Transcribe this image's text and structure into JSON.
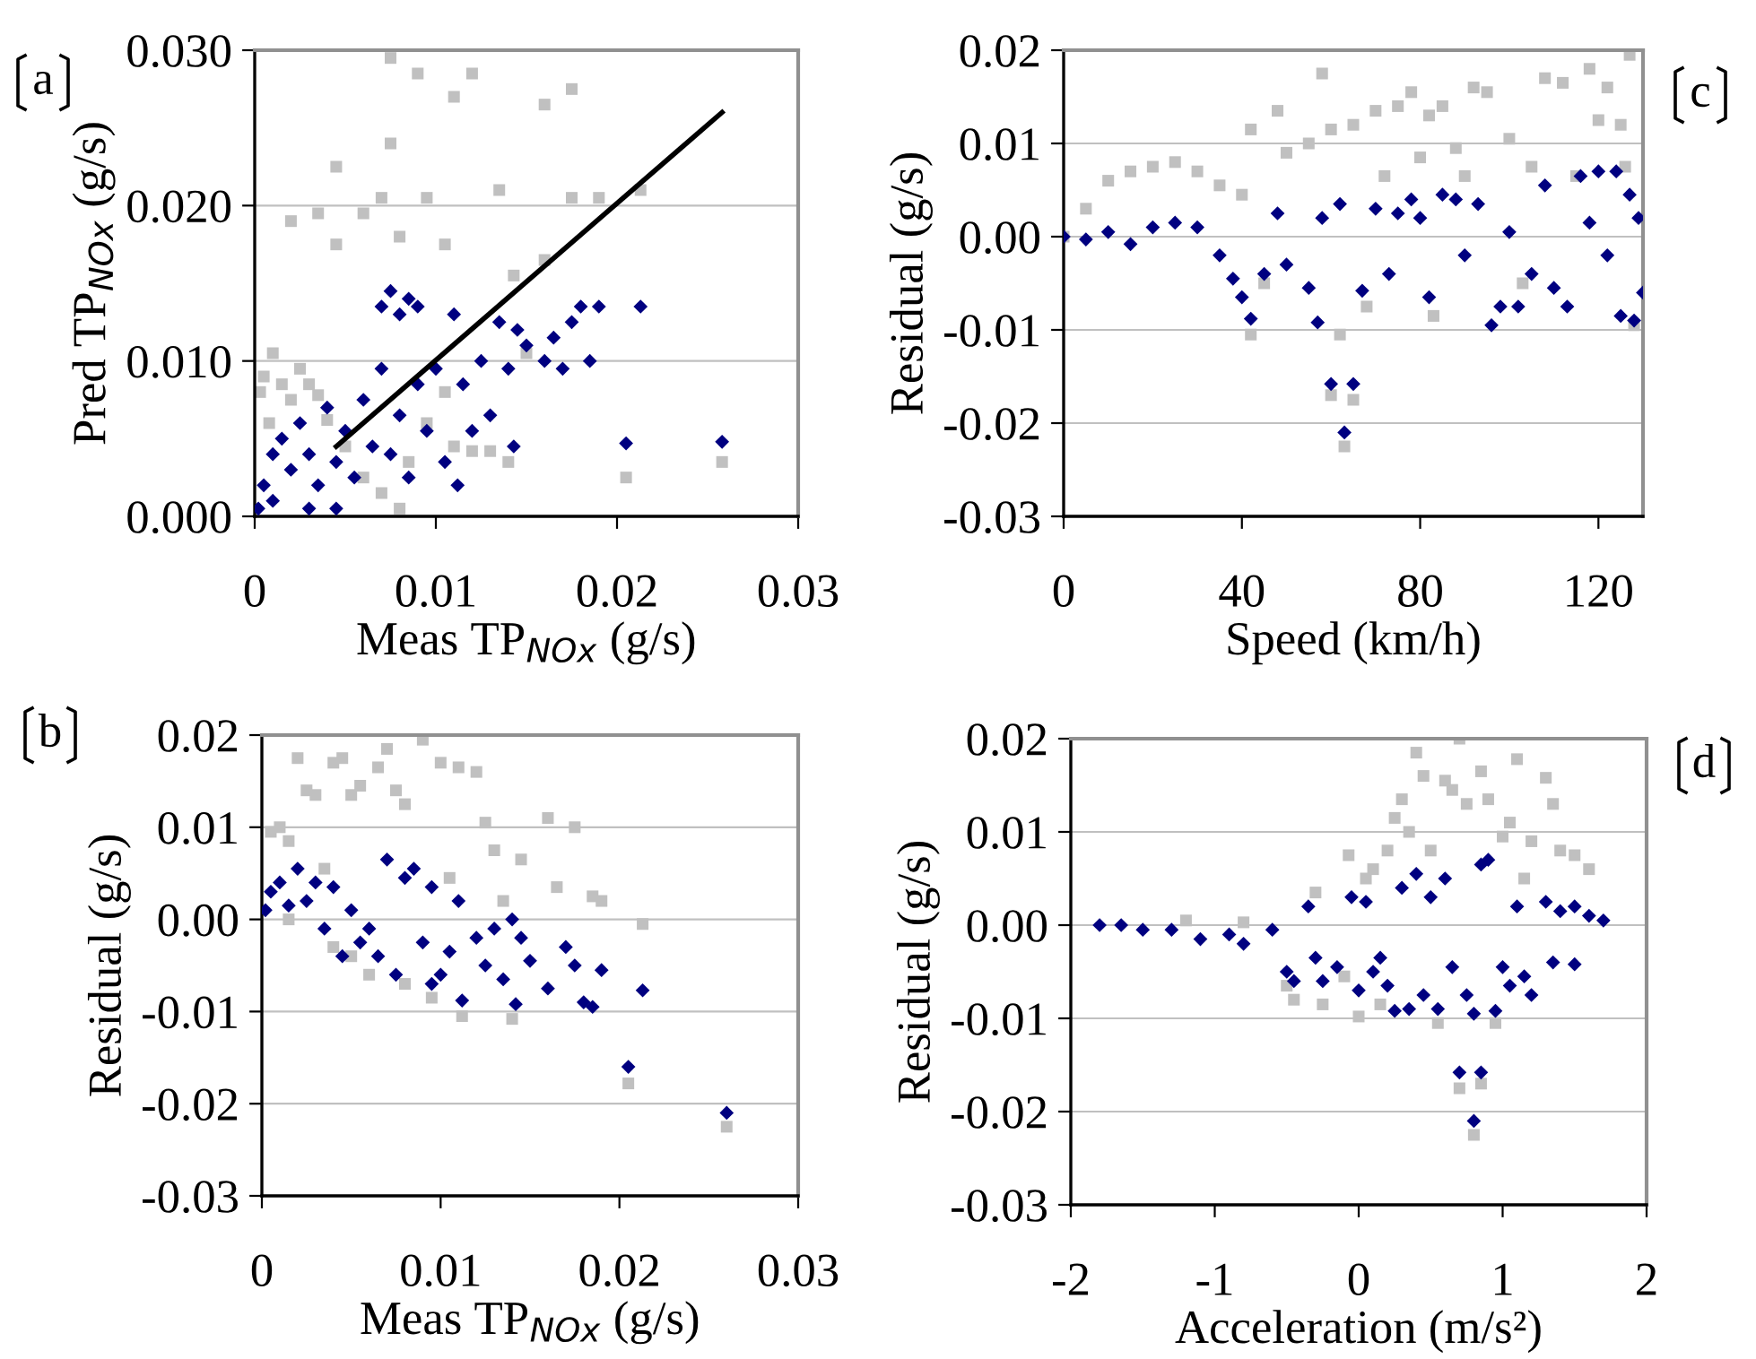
{
  "chart_data": [
    {
      "type": "scatter",
      "annotations": [
        "a"
      ],
      "xlabel": "Meas TP$_{NOx}$ (g/s)",
      "ylabel": "Pred TP$_{NOx}$ (g/s)",
      "xlim": [
        0,
        0.03
      ],
      "ylim": [
        0,
        0.03
      ],
      "xticks": [
        0,
        0.01,
        0.02,
        0.03
      ],
      "yticks": [
        {
          "value": 0,
          "label": "0.000"
        },
        {
          "value": 0.01,
          "label": "0.010"
        },
        {
          "value": 0.02,
          "label": "0.020"
        },
        {
          "value": 0.03,
          "label": "0.030"
        }
      ],
      "grid": "y",
      "series": [
        {
          "color": "#c0c0c0",
          "marker": "square",
          "x": [
            0.0005,
            0.001,
            0.0015,
            0.002,
            0.0008,
            0.0003,
            0.0025,
            0.003,
            0.0035,
            0.004,
            0.005,
            0.006,
            0.007,
            0.008,
            0.0085,
            0.0095,
            0.0105,
            0.011,
            0.012,
            0.013,
            0.014,
            0.015,
            0.016,
            0.0175,
            0.019,
            0.0213,
            0.0205,
            0.0258,
            0.0075,
            0.009,
            0.0095,
            0.011,
            0.012,
            0.0075,
            0.0045,
            0.0035,
            0.002,
            0.007,
            0.008,
            0.0105,
            0.0135,
            0.0175,
            0.016,
            0.0143,
            0.006,
            0.0045
          ],
          "values": [
            0.009,
            0.0105,
            0.0085,
            0.0075,
            0.006,
            0.008,
            0.0095,
            0.0085,
            0.0078,
            0.0062,
            0.0045,
            0.0025,
            0.0015,
            0.0005,
            0.0035,
            0.006,
            0.008,
            0.0045,
            0.0042,
            0.0042,
            0.0035,
            0.0105,
            0.0165,
            0.0205,
            0.0205,
            0.021,
            0.0025,
            0.0035,
            0.0295,
            0.0285,
            0.0205,
            0.027,
            0.0285,
            0.024,
            0.0225,
            0.0195,
            0.019,
            0.0205,
            0.018,
            0.0175,
            0.021,
            0.0275,
            0.0265,
            0.0155,
            0.0195,
            0.0175
          ]
        },
        {
          "color": "#000080",
          "marker": "diamond",
          "x": [
            0.0002,
            0.0005,
            0.001,
            0.0015,
            0.002,
            0.0025,
            0.003,
            0.0035,
            0.004,
            0.0045,
            0.005,
            0.0055,
            0.006,
            0.0065,
            0.007,
            0.007,
            0.0075,
            0.008,
            0.0085,
            0.009,
            0.0075,
            0.008,
            0.0085,
            0.009,
            0.0095,
            0.01,
            0.0105,
            0.011,
            0.0112,
            0.0115,
            0.012,
            0.0125,
            0.013,
            0.0135,
            0.014,
            0.0143,
            0.0145,
            0.015,
            0.016,
            0.0165,
            0.017,
            0.0175,
            0.018,
            0.0185,
            0.019,
            0.0213,
            0.0205,
            0.0258,
            0.001,
            0.003,
            0.0045
          ],
          "values": [
            0.0005,
            0.002,
            0.004,
            0.005,
            0.003,
            0.006,
            0.004,
            0.002,
            0.007,
            0.0035,
            0.0055,
            0.0025,
            0.0075,
            0.0045,
            0.0095,
            0.0135,
            0.0145,
            0.013,
            0.014,
            0.0135,
            0.004,
            0.0065,
            0.0025,
            0.0085,
            0.0055,
            0.0095,
            0.0035,
            0.013,
            0.002,
            0.0085,
            0.0055,
            0.01,
            0.0065,
            0.0125,
            0.0095,
            0.0045,
            0.012,
            0.011,
            0.01,
            0.0115,
            0.0095,
            0.0125,
            0.0135,
            0.01,
            0.0135,
            0.0135,
            0.0047,
            0.0048,
            0.001,
            0.0005,
            0.0005
          ]
        },
        {
          "type": "line",
          "color": "#000000",
          "marker": "none",
          "x": [
            0.0045,
            0.0258
          ],
          "values": [
            0.0045,
            0.026
          ]
        }
      ]
    },
    {
      "type": "scatter",
      "annotations": [
        "c"
      ],
      "xlabel": "Speed (km/h)",
      "ylabel": "Residual (g/s)",
      "xlim": [
        0,
        130
      ],
      "ylim": [
        -0.03,
        0.02
      ],
      "xticks": [
        0,
        40,
        80,
        120
      ],
      "yticks": [
        -0.03,
        -0.02,
        -0.01,
        {
          "value": 0,
          "label": "0.00"
        },
        0.01,
        0.02
      ],
      "grid": "y",
      "series": [
        {
          "color": "#c0c0c0",
          "marker": "square",
          "x": [
            0,
            5,
            10,
            15,
            20,
            25,
            30,
            35,
            40,
            42,
            45,
            48,
            50,
            55,
            58,
            60,
            62,
            60,
            65,
            63,
            65,
            70,
            72,
            75,
            78,
            80,
            82,
            85,
            88,
            90,
            92,
            95,
            100,
            103,
            105,
            108,
            112,
            115,
            118,
            120,
            122,
            125,
            127,
            128,
            126,
            68,
            83,
            42
          ],
          "values": [
            0,
            0.003,
            0.006,
            0.007,
            0.0075,
            0.008,
            0.007,
            0.0055,
            0.0045,
            0.0115,
            -0.005,
            0.0135,
            0.009,
            0.01,
            0.0175,
            0.0115,
            -0.0105,
            -0.017,
            -0.0175,
            -0.0225,
            0.012,
            0.0135,
            0.0065,
            0.014,
            0.0155,
            0.0085,
            0.013,
            0.014,
            0.0095,
            0.0065,
            0.016,
            0.0155,
            0.0105,
            -0.005,
            0.0075,
            0.017,
            0.0165,
            0.0065,
            0.018,
            0.0125,
            0.016,
            0.012,
            0.0195,
            -0.0095,
            0.0075,
            -0.0075,
            -0.0085,
            -0.0105
          ]
        },
        {
          "color": "#000080",
          "marker": "diamond",
          "x": [
            0,
            5,
            10,
            15,
            20,
            25,
            30,
            35,
            38,
            40,
            42,
            45,
            48,
            50,
            55,
            57,
            58,
            60,
            63,
            65,
            62,
            67,
            70,
            73,
            75,
            78,
            80,
            82,
            85,
            88,
            90,
            93,
            96,
            98,
            100,
            102,
            105,
            108,
            110,
            113,
            116,
            118,
            120,
            122,
            124,
            125,
            127,
            128,
            129,
            130
          ],
          "values": [
            0,
            -0.0003,
            0.0005,
            -0.0008,
            0.001,
            0.0015,
            0.001,
            -0.002,
            -0.0045,
            -0.0065,
            -0.0088,
            -0.004,
            0.0025,
            -0.003,
            -0.0055,
            -0.0092,
            0.002,
            -0.0158,
            -0.021,
            -0.0158,
            0.0035,
            -0.0058,
            0.003,
            -0.004,
            0.0025,
            0.004,
            0.002,
            -0.0065,
            0.0045,
            0.004,
            -0.002,
            0.0035,
            -0.0095,
            -0.0075,
            0.0005,
            -0.0075,
            -0.004,
            0.0055,
            -0.0055,
            -0.0075,
            0.0065,
            0.0015,
            0.007,
            -0.002,
            0.007,
            -0.0085,
            0.0045,
            -0.009,
            0.002,
            -0.006
          ]
        }
      ]
    },
    {
      "type": "scatter",
      "annotations": [
        "b"
      ],
      "xlabel": "Meas TP$_{NOx}$ (g/s)",
      "ylabel": "Residual (g/s)",
      "xlim": [
        0,
        0.03
      ],
      "ylim": [
        -0.03,
        0.02
      ],
      "xticks": [
        0,
        0.01,
        0.02,
        0.03
      ],
      "yticks": [
        -0.03,
        -0.02,
        -0.01,
        {
          "value": 0,
          "label": "0.00"
        },
        0.01,
        0.02
      ],
      "grid": "y",
      "series": [
        {
          "color": "#c0c0c0",
          "marker": "square",
          "x": [
            0.0005,
            0.001,
            0.0015,
            0.002,
            0.0025,
            0.003,
            0.0035,
            0.004,
            0.0045,
            0.005,
            0.0055,
            0.006,
            0.0065,
            0.007,
            0.0075,
            0.008,
            0.009,
            0.0095,
            0.01,
            0.0105,
            0.011,
            0.0112,
            0.012,
            0.0125,
            0.013,
            0.014,
            0.0145,
            0.016,
            0.0165,
            0.0175,
            0.0185,
            0.019,
            0.0213,
            0.0205,
            0.026,
            0.0015,
            0.004,
            0.005,
            0.008,
            0.0135
          ],
          "values": [
            0.0095,
            0.01,
            0.0085,
            0.0175,
            0.014,
            0.0135,
            0.0055,
            0.017,
            0.0175,
            0.0135,
            0.0145,
            -0.006,
            0.0165,
            0.0185,
            0.014,
            0.0125,
            0.0195,
            -0.0085,
            0.017,
            0.0045,
            0.0165,
            -0.0105,
            0.016,
            0.0105,
            0.0075,
            -0.0108,
            0.0065,
            0.011,
            0.0035,
            0.01,
            0.0025,
            0.002,
            -0.0005,
            -0.0178,
            -0.0225,
            0.0,
            -0.003,
            -0.004,
            -0.007,
            0.002
          ]
        },
        {
          "color": "#000080",
          "marker": "diamond",
          "x": [
            0.0002,
            0.0005,
            0.001,
            0.0015,
            0.002,
            0.0025,
            0.003,
            0.0035,
            0.004,
            0.0045,
            0.005,
            0.0055,
            0.006,
            0.0065,
            0.007,
            0.0075,
            0.008,
            0.0085,
            0.009,
            0.0095,
            0.0095,
            0.01,
            0.0105,
            0.011,
            0.0112,
            0.012,
            0.0125,
            0.013,
            0.0135,
            0.014,
            0.0142,
            0.0145,
            0.015,
            0.016,
            0.017,
            0.0175,
            0.018,
            0.0185,
            0.019,
            0.0213,
            0.0205,
            0.026
          ],
          "values": [
            0.001,
            0.003,
            0.004,
            0.0015,
            0.0055,
            0.002,
            0.004,
            -0.001,
            0.0035,
            -0.004,
            0.001,
            -0.0025,
            -0.001,
            -0.004,
            0.0065,
            -0.006,
            0.0045,
            0.0055,
            -0.0025,
            0.0035,
            -0.007,
            -0.006,
            -0.0035,
            0.002,
            -0.0088,
            -0.002,
            -0.005,
            -0.001,
            -0.0065,
            0.0,
            -0.0092,
            -0.002,
            -0.0045,
            -0.0075,
            -0.003,
            -0.005,
            -0.009,
            -0.0095,
            -0.0055,
            -0.0077,
            -0.016,
            -0.021
          ]
        }
      ]
    },
    {
      "type": "scatter",
      "annotations": [
        "d"
      ],
      "xlabel": "Acceleration (m/s²)",
      "ylabel": "Residual (g/s)",
      "xlim": [
        -2,
        2
      ],
      "ylim": [
        -0.03,
        0.02
      ],
      "xticks": [
        -2,
        -1,
        0,
        1,
        2
      ],
      "yticks": [
        -0.03,
        -0.02,
        -0.01,
        {
          "value": 0,
          "label": "0.00"
        },
        0.01,
        0.02
      ],
      "grid": "y",
      "series": [
        {
          "color": "#c0c0c0",
          "marker": "square",
          "x": [
            -0.5,
            -0.45,
            -0.3,
            -0.25,
            -0.1,
            -0.07,
            0,
            0.05,
            0.1,
            0.15,
            0.2,
            0.25,
            0.3,
            0.35,
            0.4,
            0.45,
            0.5,
            0.55,
            0.6,
            0.65,
            0.7,
            0.7,
            0.75,
            0.8,
            0.85,
            0.85,
            0.9,
            0.95,
            1.0,
            1.05,
            1.1,
            1.15,
            1.2,
            1.3,
            1.35,
            1.4,
            1.5,
            1.6,
            -1.2,
            -0.8
          ],
          "values": [
            -0.0065,
            -0.008,
            0.0035,
            -0.0085,
            -0.0055,
            0.0075,
            -0.0098,
            0.005,
            0.006,
            -0.0085,
            0.008,
            0.0115,
            0.0135,
            0.01,
            0.0185,
            0.016,
            0.008,
            -0.0105,
            0.0155,
            0.0145,
            0.02,
            -0.0175,
            0.013,
            -0.0225,
            -0.017,
            0.0165,
            0.0135,
            -0.0105,
            0.0095,
            0.011,
            0.0178,
            0.005,
            0.009,
            0.0158,
            0.013,
            0.008,
            0.0075,
            0.006,
            0.0005,
            0.0003
          ]
        },
        {
          "color": "#000080",
          "marker": "diamond",
          "x": [
            -1.8,
            -1.65,
            -1.5,
            -1.3,
            -1.1,
            -0.9,
            -0.8,
            -0.6,
            -0.5,
            -0.45,
            -0.35,
            -0.3,
            -0.25,
            -0.15,
            -0.05,
            0,
            0.05,
            0.1,
            0.15,
            0.2,
            0.25,
            0.3,
            0.35,
            0.4,
            0.45,
            0.5,
            0.55,
            0.6,
            0.65,
            0.7,
            0.75,
            0.8,
            0.8,
            0.85,
            0.85,
            0.9,
            0.95,
            1.0,
            1.05,
            1.1,
            1.15,
            1.2,
            1.3,
            1.35,
            1.4,
            1.5,
            1.5,
            1.6,
            1.7
          ],
          "values": [
            0,
            0,
            -0.0005,
            -0.0005,
            -0.0015,
            -0.001,
            -0.002,
            -0.0005,
            -0.005,
            -0.006,
            0.002,
            -0.0035,
            -0.006,
            -0.0045,
            0.003,
            -0.007,
            0.0025,
            -0.005,
            -0.0035,
            -0.0065,
            -0.0092,
            0.004,
            -0.009,
            0.0055,
            -0.0075,
            0.003,
            -0.009,
            0.005,
            -0.0045,
            -0.0158,
            -0.0075,
            -0.021,
            -0.0095,
            -0.0158,
            0.0065,
            0.007,
            -0.0092,
            -0.0045,
            -0.0065,
            0.002,
            -0.0055,
            -0.0075,
            0.0025,
            -0.004,
            0.0015,
            -0.0042,
            0.002,
            0.001,
            0.0005
          ]
        }
      ]
    }
  ]
}
